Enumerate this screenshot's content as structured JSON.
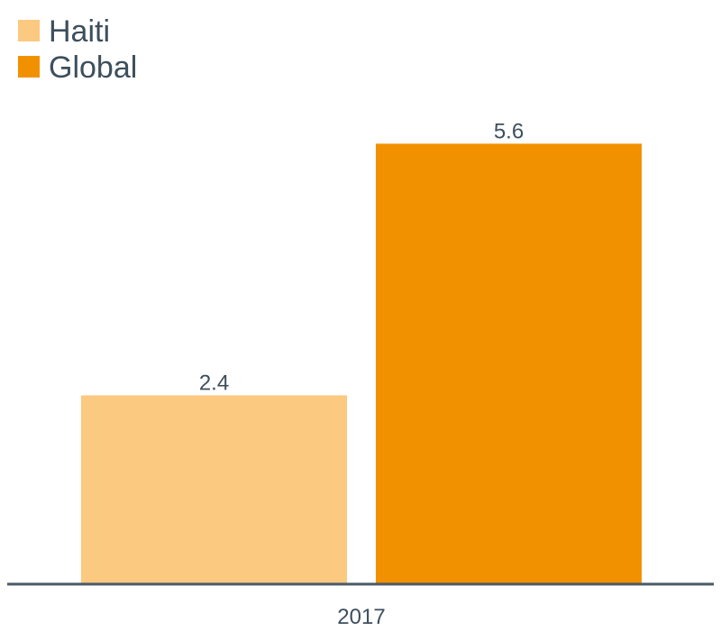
{
  "chart_data": {
    "type": "bar",
    "categories": [
      "2017"
    ],
    "series": [
      {
        "name": "Haiti",
        "values": [
          2.4
        ],
        "color": "#fbc97f"
      },
      {
        "name": "Global",
        "values": [
          5.6
        ],
        "color": "#f29100"
      }
    ],
    "title": "",
    "xlabel": "",
    "ylabel": "",
    "ylim": [
      0,
      6
    ],
    "grid": false,
    "legend": "top-left",
    "axis_color": "#4a5a66"
  }
}
